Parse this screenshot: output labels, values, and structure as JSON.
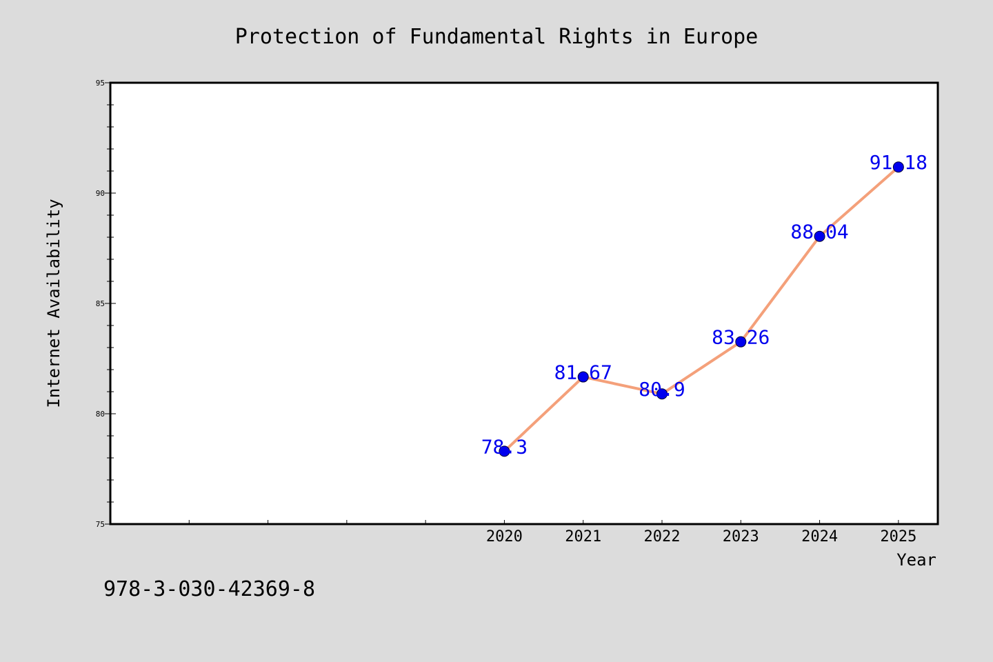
{
  "chart_data": {
    "type": "line",
    "title": "Protection of Fundamental Rights in Europe",
    "xlabel": "Year",
    "ylabel": "Internet Availability",
    "x": [
      2020,
      2021,
      2022,
      2023,
      2024,
      2025
    ],
    "xlim": [
      2015,
      2025.5
    ],
    "ylim": [
      75,
      95
    ],
    "yticks": [
      75,
      80,
      85,
      90,
      95
    ],
    "series": [
      {
        "values": [
          78.3,
          81.67,
          80.9,
          83.26,
          88.04,
          91.18
        ],
        "line_color": "#f4a07a",
        "marker_color": "#0000ee",
        "label_color": "#0000ee"
      }
    ],
    "data_labels": [
      "78.3",
      "81.67",
      "80.9",
      "83.26",
      "88.04",
      "91.18"
    ],
    "grid": false,
    "legend": "none"
  },
  "footer_text": "978-3-030-42369-8",
  "colors": {
    "background": "#dcdcdc",
    "plot_background": "#ffffff",
    "axis": "#000000"
  }
}
